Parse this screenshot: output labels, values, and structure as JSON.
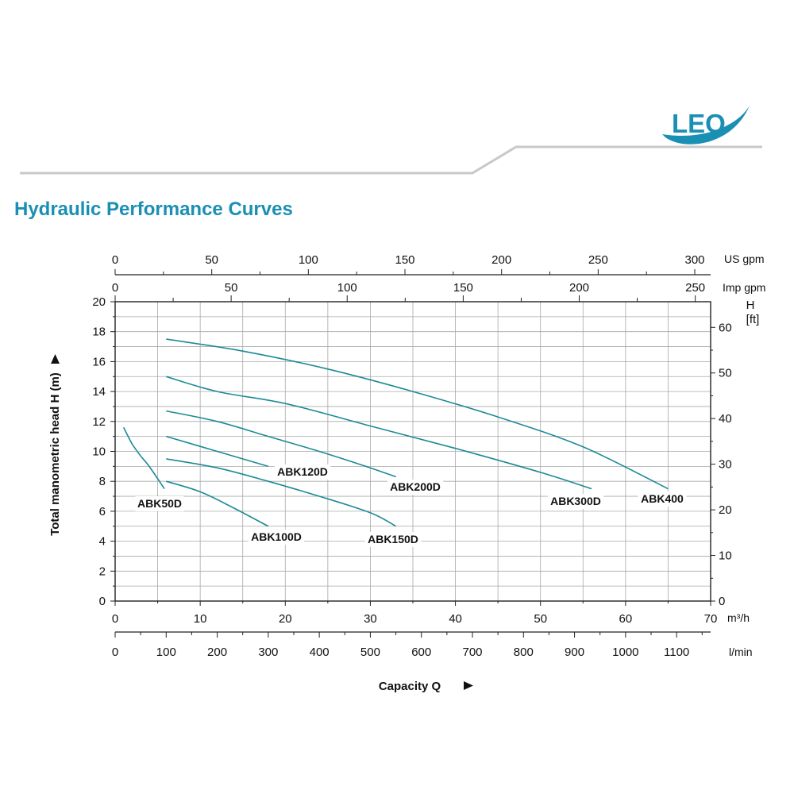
{
  "header": {
    "title": "Hydraulic Performance Curves",
    "logo_text": "LEO",
    "accent_color": "#1a8fb4",
    "line_color": "#c8c8c8"
  },
  "chart_data": {
    "type": "line",
    "title": "Hydraulic Performance Curves",
    "xlabel": "Capacity Q",
    "ylabel": "Total manometric head H (m)",
    "x_unit": "m³/h",
    "xlim": [
      0,
      70
    ],
    "ylim": [
      0,
      20
    ],
    "grid": true,
    "curve_color": "#1b8a96",
    "axes": {
      "x_m3h": {
        "unit": "m³/h",
        "ticks": [
          "0",
          "10",
          "20",
          "30",
          "40",
          "50",
          "60",
          "70"
        ]
      },
      "x_lmin": {
        "unit": "l/min",
        "ticks": [
          "0",
          "100",
          "200",
          "300",
          "400",
          "500",
          "600",
          "700",
          "800",
          "900",
          "1000",
          "1100"
        ]
      },
      "x_usgpm": {
        "unit": "US gpm",
        "ticks": [
          "0",
          "50",
          "100",
          "150",
          "200",
          "250",
          "300"
        ]
      },
      "x_impgpm": {
        "unit": "Imp gpm",
        "ticks": [
          "0",
          "50",
          "100",
          "150",
          "200",
          "250"
        ]
      },
      "y_m": {
        "ticks": [
          "0",
          "2",
          "4",
          "6",
          "8",
          "10",
          "12",
          "14",
          "16",
          "18",
          "20"
        ]
      },
      "y_ft": {
        "unit_top": "H",
        "unit_bottom": "[ft]",
        "ticks": [
          "0",
          "10",
          "20",
          "30",
          "40",
          "50",
          "60"
        ]
      }
    },
    "series": [
      {
        "name": "ABK50D",
        "x": [
          1,
          2,
          3,
          4,
          5.8
        ],
        "y": [
          11.6,
          10.5,
          9.7,
          9.0,
          7.5
        ]
      },
      {
        "name": "ABK100D",
        "x": [
          6,
          10,
          14,
          18
        ],
        "y": [
          8.0,
          7.3,
          6.2,
          5.0
        ]
      },
      {
        "name": "ABK120D",
        "x": [
          6,
          12,
          18
        ],
        "y": [
          11.0,
          10.0,
          9.0
        ]
      },
      {
        "name": "ABK150D",
        "x": [
          6,
          12,
          18,
          24,
          30,
          33
        ],
        "y": [
          9.5,
          8.9,
          8.0,
          7.0,
          5.9,
          5.0
        ]
      },
      {
        "name": "ABK200D",
        "x": [
          6,
          12,
          18,
          24,
          30,
          33
        ],
        "y": [
          12.7,
          12.0,
          11.0,
          10.0,
          8.9,
          8.3
        ]
      },
      {
        "name": "ABK300D",
        "x": [
          6,
          12,
          20,
          30,
          40,
          50,
          56
        ],
        "y": [
          15.0,
          14.0,
          13.2,
          11.7,
          10.2,
          8.6,
          7.5
        ]
      },
      {
        "name": "ABK400",
        "x": [
          6,
          15,
          25,
          35,
          45,
          55,
          65
        ],
        "y": [
          17.5,
          16.7,
          15.5,
          14.0,
          12.3,
          10.3,
          7.5
        ]
      }
    ]
  }
}
